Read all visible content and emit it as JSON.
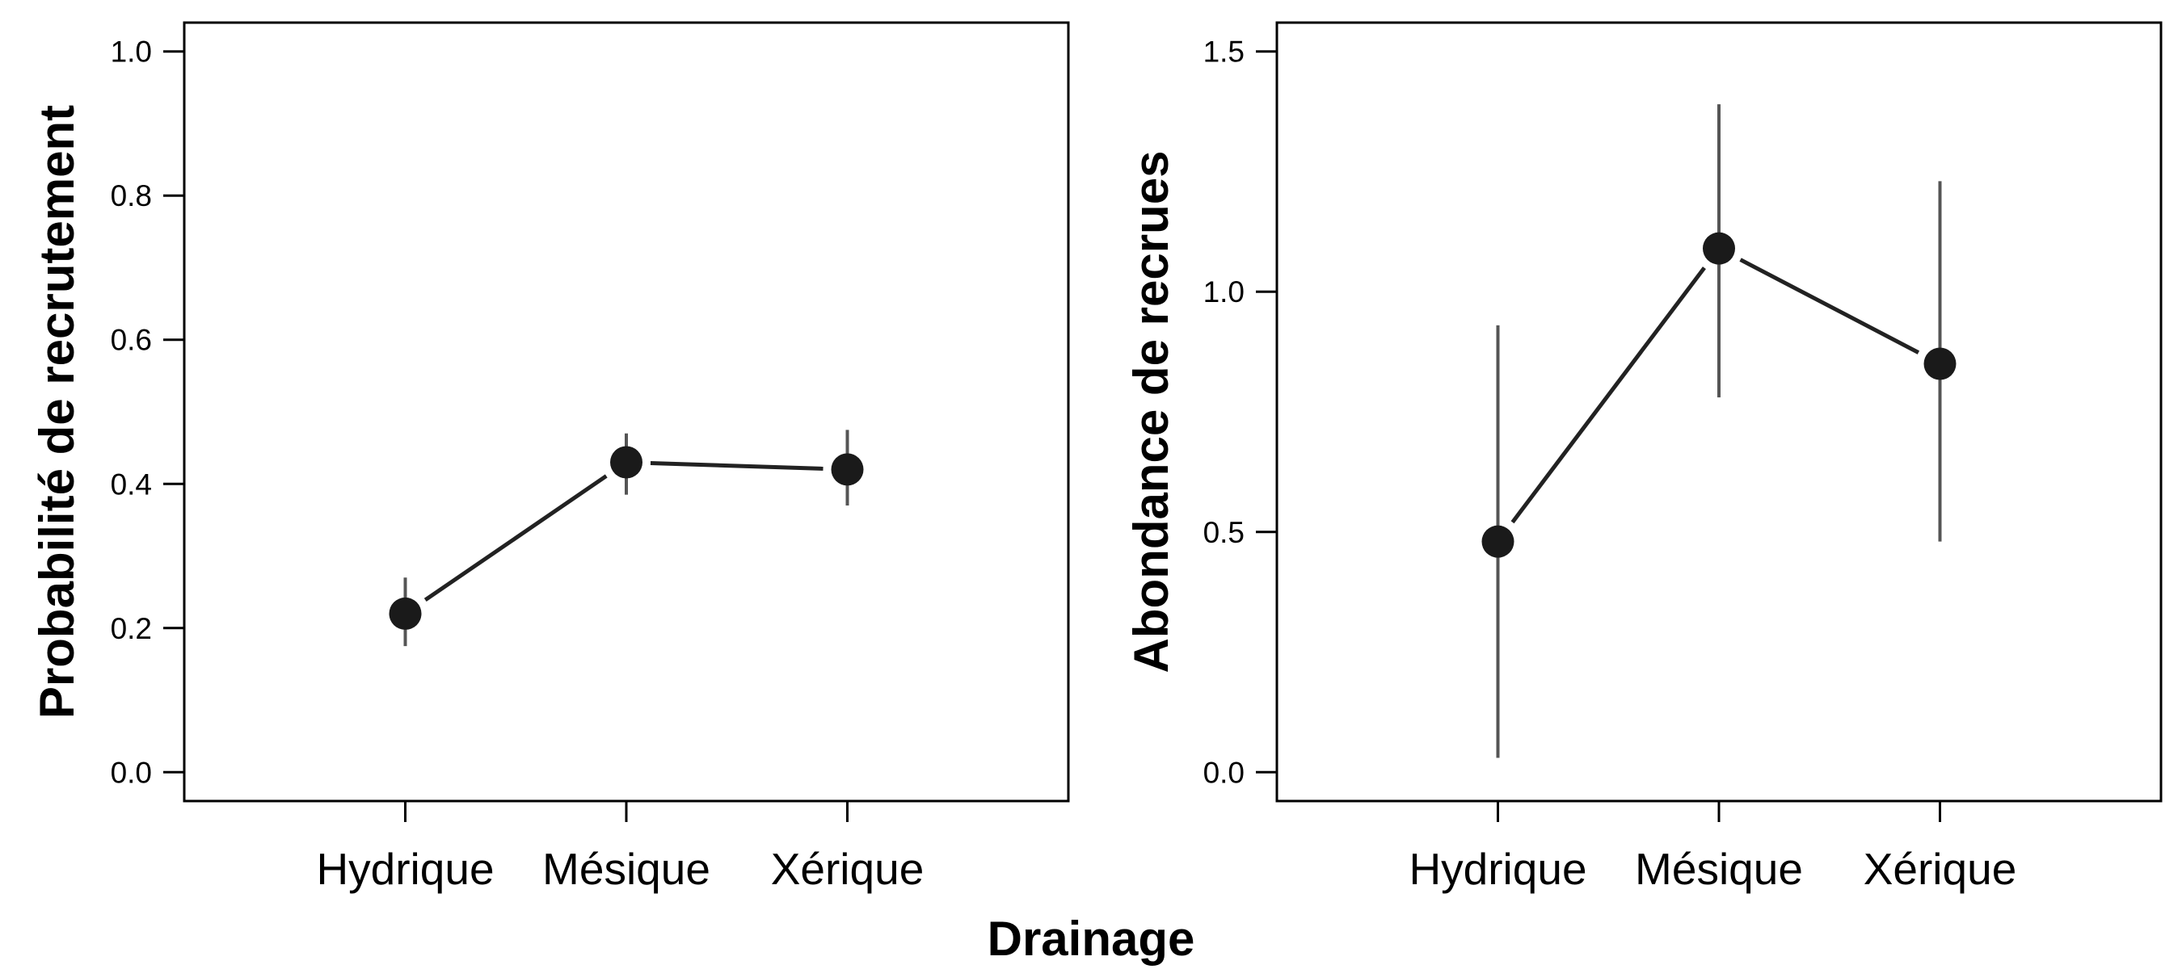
{
  "figure": {
    "xlabel": "Drainage"
  },
  "chart_data": [
    {
      "type": "line",
      "title": "",
      "ylabel": "Probabilité de recrutement",
      "xlabel": "",
      "categories": [
        "Hydrique",
        "Mésique",
        "Xérique"
      ],
      "ylim": [
        -0.04,
        1.04
      ],
      "yticks": [
        0.0,
        0.2,
        0.4,
        0.6,
        0.8,
        1.0
      ],
      "ytick_labels": [
        "0.0",
        "0.2",
        "0.4",
        "0.6",
        "0.8",
        "1.0"
      ],
      "series": [
        {
          "values": [
            0.22,
            0.43,
            0.42
          ],
          "lower": [
            0.175,
            0.385,
            0.37
          ],
          "upper": [
            0.27,
            0.47,
            0.475
          ]
        }
      ],
      "grid": false,
      "colors": {
        "line": "#222222",
        "point": "#1a1a1a",
        "errorbar": "#555555"
      }
    },
    {
      "type": "line",
      "title": "",
      "ylabel": "Abondance de recrues",
      "xlabel": "",
      "categories": [
        "Hydrique",
        "Mésique",
        "Xérique"
      ],
      "ylim": [
        -0.06,
        1.56
      ],
      "yticks": [
        0.0,
        0.5,
        1.0,
        1.5
      ],
      "ytick_labels": [
        "0.0",
        "0.5",
        "1.0",
        "1.5"
      ],
      "series": [
        {
          "values": [
            0.48,
            1.09,
            0.85
          ],
          "lower": [
            0.03,
            0.78,
            0.48
          ],
          "upper": [
            0.93,
            1.39,
            1.23
          ]
        }
      ],
      "grid": false,
      "colors": {
        "line": "#222222",
        "point": "#1a1a1a",
        "errorbar": "#555555"
      }
    }
  ]
}
